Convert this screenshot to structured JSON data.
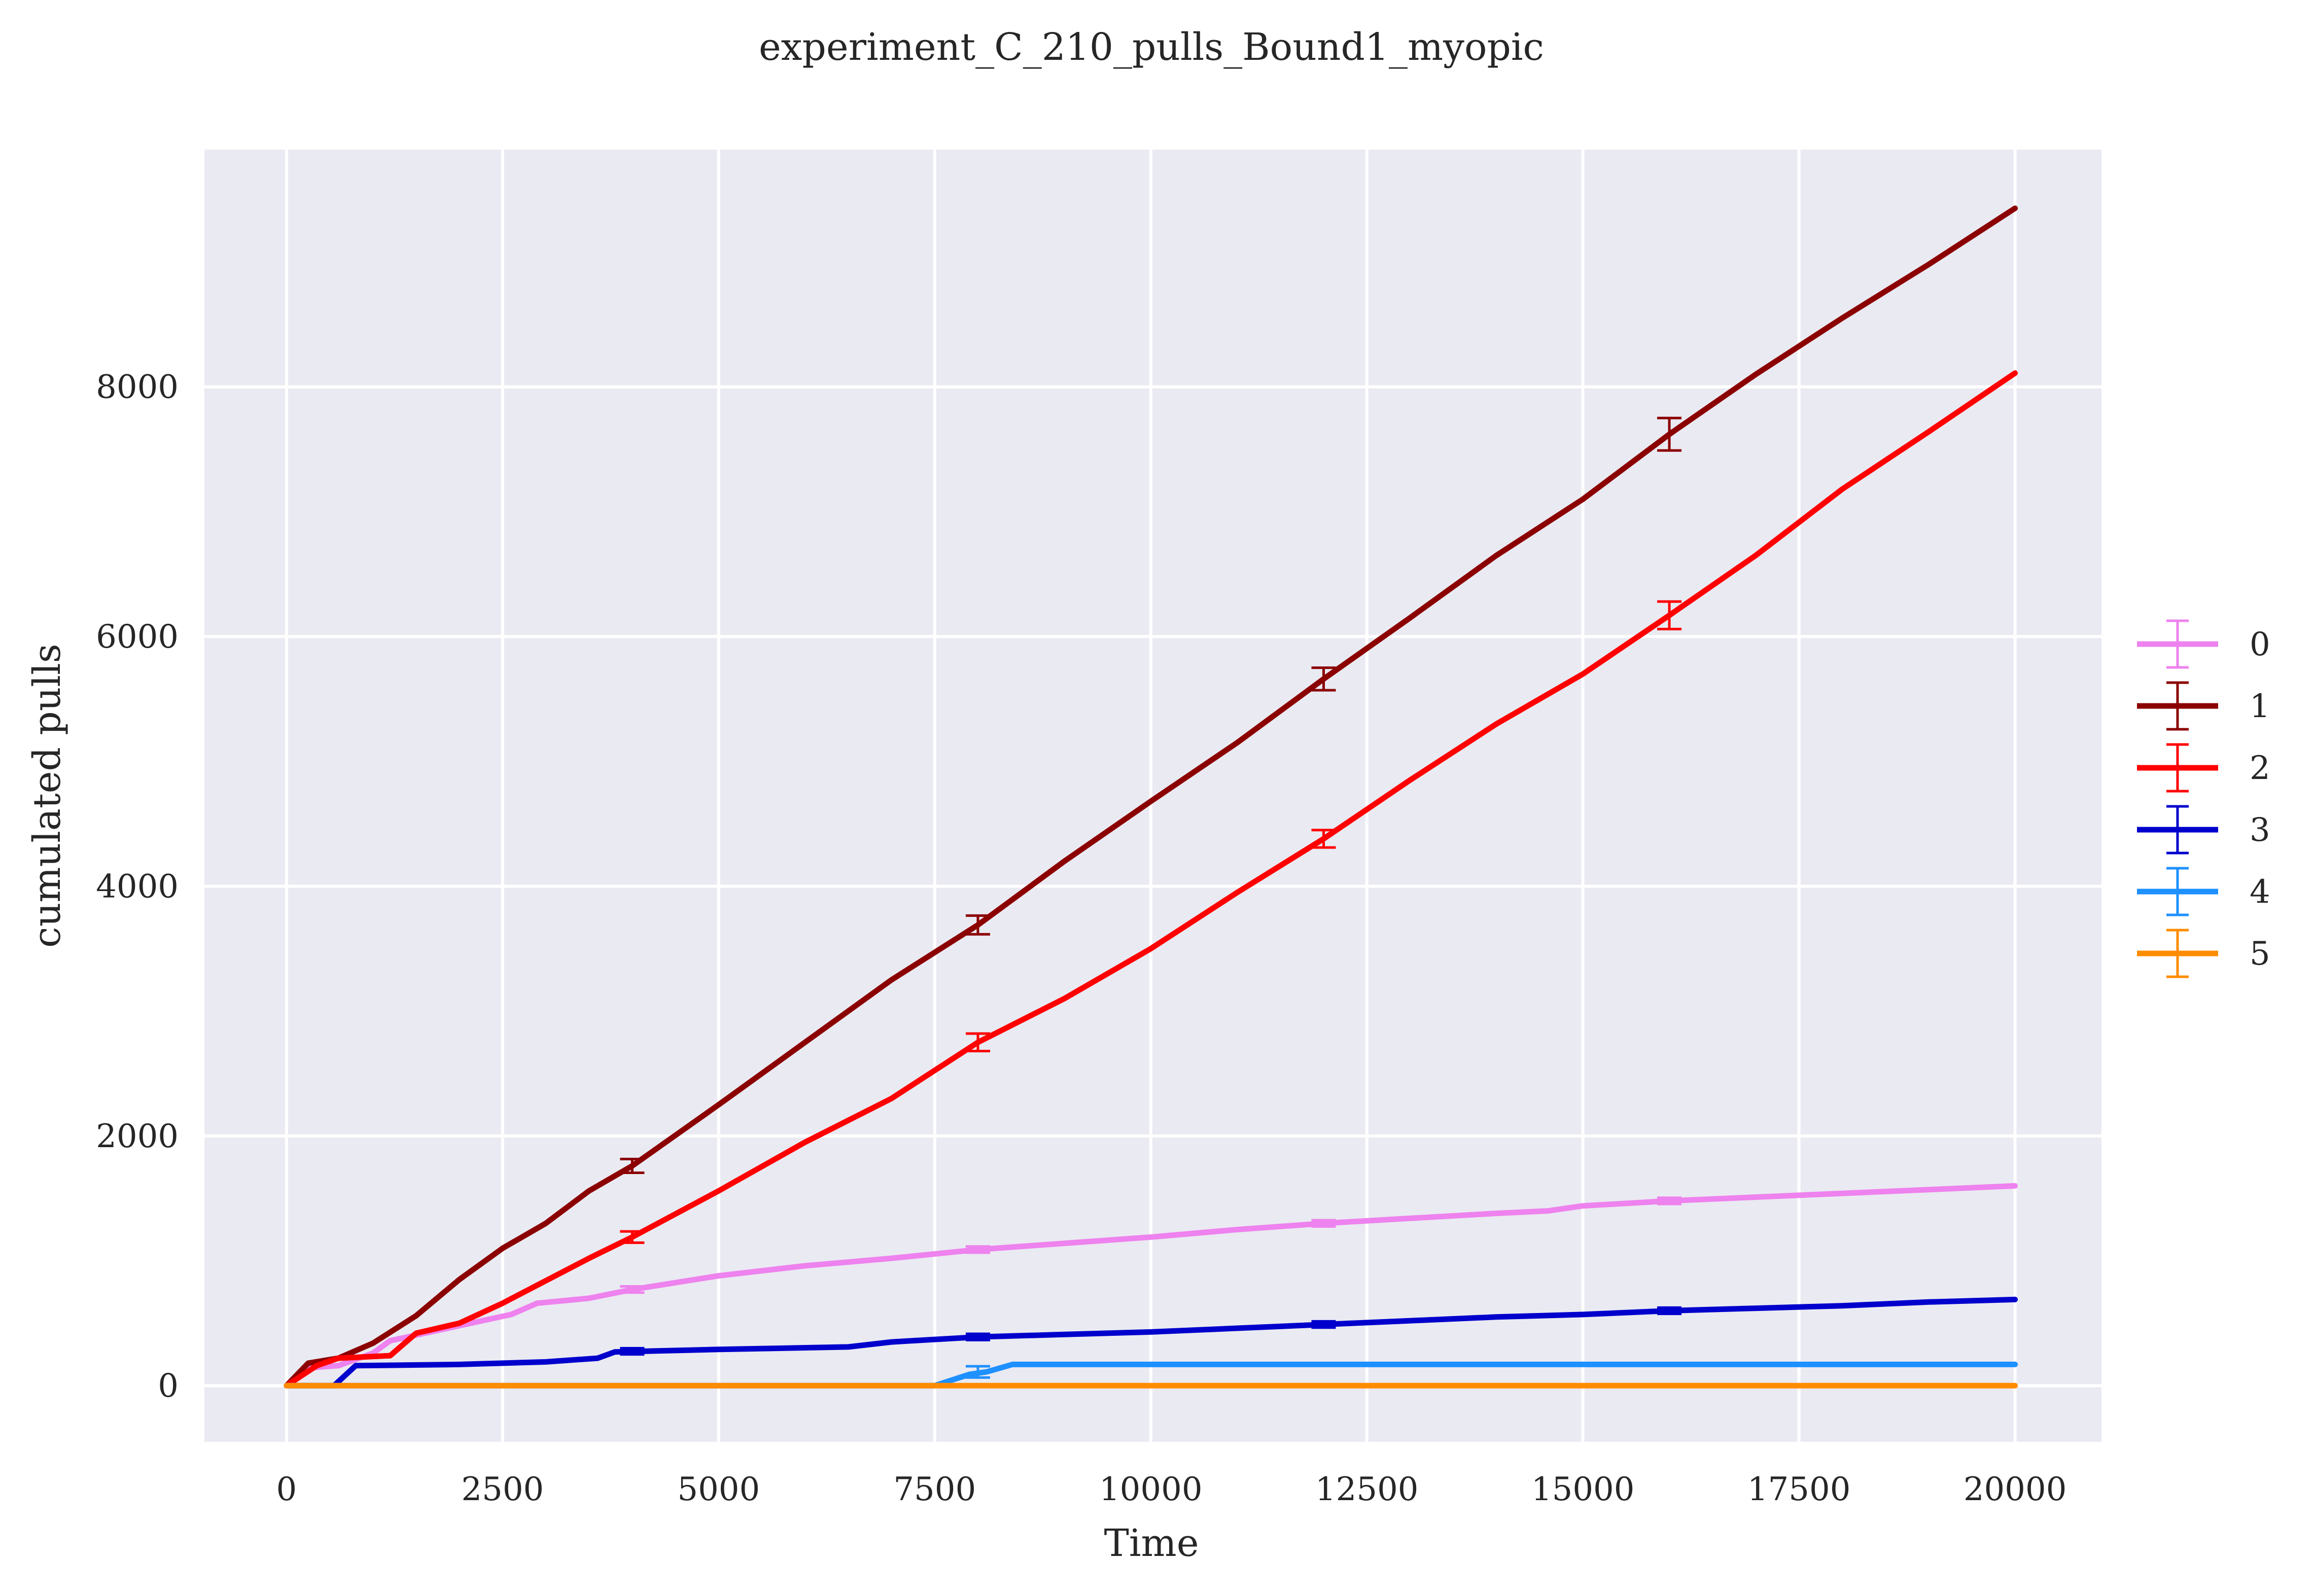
{
  "chart_data": {
    "type": "line",
    "title": "experiment_C_210_pulls_Bound1_myopic",
    "xlabel": "Time",
    "ylabel": "cumulated pulls",
    "xlim": [
      -950,
      21000
    ],
    "ylim": [
      -450,
      9900
    ],
    "xticks": [
      0,
      2500,
      5000,
      7500,
      10000,
      12500,
      15000,
      17500,
      20000
    ],
    "xtick_labels": [
      "0",
      "2500",
      "5000",
      "7500",
      "10000",
      "12500",
      "15000",
      "17500",
      "20000"
    ],
    "yticks": [
      0,
      2000,
      4000,
      6000,
      8000
    ],
    "ytick_labels": [
      "0",
      "2000",
      "4000",
      "6000",
      "8000"
    ],
    "grid": true,
    "background": "#eaeaf2",
    "legend_position": "right-center",
    "series": [
      {
        "name": "0",
        "color": "#ee82ee",
        "x": [
          0,
          200,
          600,
          1000,
          1200,
          2000,
          2600,
          2900,
          3500,
          4000,
          5000,
          6000,
          7000,
          8000,
          9000,
          10000,
          11000,
          12000,
          13000,
          14000,
          14600,
          15000,
          16000,
          17000,
          18000,
          19000,
          20000
        ],
        "y": [
          0,
          140,
          160,
          260,
          360,
          480,
          570,
          660,
          700,
          770,
          880,
          960,
          1020,
          1090,
          1140,
          1190,
          1250,
          1300,
          1340,
          1380,
          1400,
          1440,
          1480,
          1510,
          1540,
          1570,
          1600
        ],
        "errorbars": [
          {
            "x": 4000,
            "y": 770,
            "err": 25
          },
          {
            "x": 8000,
            "y": 1090,
            "err": 25
          },
          {
            "x": 12000,
            "y": 1300,
            "err": 25
          },
          {
            "x": 16000,
            "y": 1480,
            "err": 25
          }
        ]
      },
      {
        "name": "1",
        "color": "#8b0000",
        "x": [
          0,
          250,
          600,
          1000,
          1500,
          2000,
          2500,
          3000,
          3500,
          4000,
          5000,
          6000,
          7000,
          8000,
          9000,
          10000,
          11000,
          12000,
          13000,
          14000,
          15000,
          16000,
          17000,
          18000,
          19000,
          20000
        ],
        "y": [
          0,
          180,
          220,
          340,
          560,
          850,
          1100,
          1300,
          1560,
          1760,
          2250,
          2750,
          3250,
          3690,
          4200,
          4680,
          5150,
          5660,
          6150,
          6650,
          7100,
          7620,
          8100,
          8550,
          8980,
          9430
        ],
        "errorbars": [
          {
            "x": 4000,
            "y": 1760,
            "err": 55
          },
          {
            "x": 8000,
            "y": 3690,
            "err": 75
          },
          {
            "x": 12000,
            "y": 5660,
            "err": 90
          },
          {
            "x": 16000,
            "y": 7620,
            "err": 130
          }
        ]
      },
      {
        "name": "2",
        "color": "#ff0000",
        "x": [
          0,
          350,
          600,
          1200,
          1500,
          2000,
          2500,
          3000,
          3500,
          4000,
          5000,
          6000,
          7000,
          8000,
          9000,
          10000,
          11000,
          12000,
          13000,
          14000,
          15000,
          16000,
          17000,
          18000,
          19000,
          20000
        ],
        "y": [
          0,
          160,
          220,
          240,
          420,
          500,
          660,
          840,
          1020,
          1190,
          1560,
          1950,
          2300,
          2750,
          3100,
          3500,
          3950,
          4380,
          4850,
          5300,
          5700,
          6170,
          6650,
          7180,
          7640,
          8110
        ],
        "errorbars": [
          {
            "x": 4000,
            "y": 1190,
            "err": 45
          },
          {
            "x": 8000,
            "y": 2750,
            "err": 70
          },
          {
            "x": 12000,
            "y": 4380,
            "err": 70
          },
          {
            "x": 16000,
            "y": 6170,
            "err": 110
          }
        ]
      },
      {
        "name": "3",
        "color": "#0000cd",
        "x": [
          0,
          550,
          800,
          2000,
          3000,
          3600,
          3800,
          5000,
          6500,
          7000,
          8000,
          9000,
          10000,
          11000,
          12000,
          13000,
          14000,
          15000,
          16000,
          17000,
          18000,
          19000,
          20000
        ],
        "y": [
          0,
          0,
          160,
          170,
          190,
          220,
          270,
          290,
          310,
          350,
          390,
          410,
          430,
          460,
          490,
          520,
          550,
          570,
          600,
          620,
          640,
          670,
          690
        ],
        "errorbars": [
          {
            "x": 4000,
            "y": 275,
            "err": 25
          },
          {
            "x": 8000,
            "y": 390,
            "err": 25
          },
          {
            "x": 12000,
            "y": 490,
            "err": 25
          },
          {
            "x": 16000,
            "y": 600,
            "err": 25
          }
        ]
      },
      {
        "name": "4",
        "color": "#1e90ff",
        "x": [
          0,
          7500,
          7900,
          8100,
          8400,
          20000
        ],
        "y": [
          0,
          0,
          90,
          110,
          170,
          170
        ],
        "errorbars": [
          {
            "x": 8000,
            "y": 110,
            "err": 45
          }
        ]
      },
      {
        "name": "5",
        "color": "#ff8c00",
        "x": [
          0,
          20000
        ],
        "y": [
          0,
          0
        ],
        "errorbars": []
      }
    ]
  }
}
